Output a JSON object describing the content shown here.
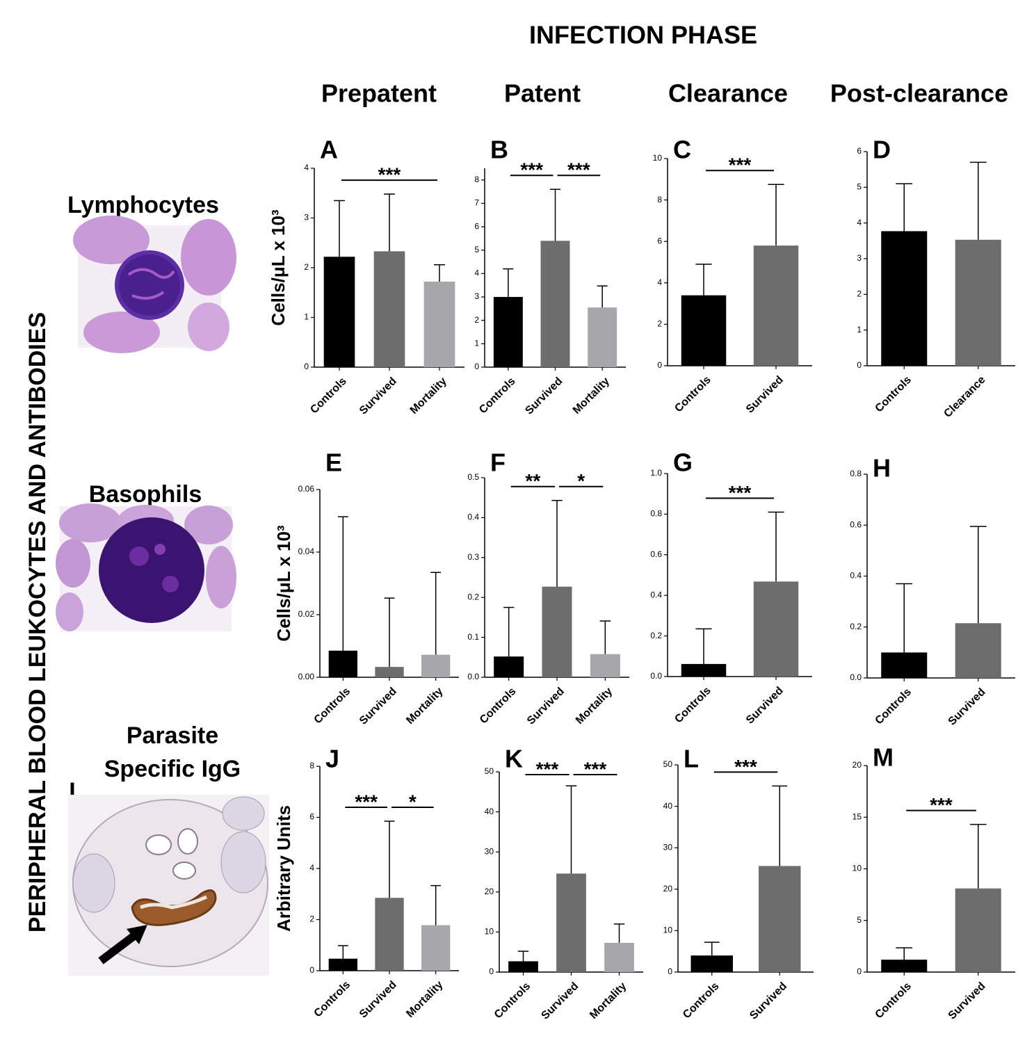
{
  "figure": {
    "title": "INFECTION PHASE",
    "phases": [
      "Prepatent",
      "Patent",
      "Clearance",
      "Post-clearance"
    ],
    "side_label": "PERIPHERAL BLOOD LEUKOCYTES AND ANTIBODIES",
    "row_labels": [
      "Lymphocytes",
      "Basophils"
    ],
    "igg_label": [
      "Parasite",
      "Specific IgG"
    ],
    "image_label": "I"
  },
  "chart_data": [
    {
      "type": "bar",
      "panel": "A",
      "ylabel": "Cells/μL x 10³",
      "categories": [
        "Controls",
        "Survived",
        "Mortality"
      ],
      "values": [
        2.22,
        2.33,
        1.72
      ],
      "errors": [
        1.13,
        1.15,
        0.34
      ],
      "colors": [
        "#000000",
        "#6d6d6d",
        "#a7a7ab"
      ],
      "ylim": [
        0,
        4
      ],
      "yticks": [
        0,
        1,
        2,
        3,
        4
      ],
      "annotations": [
        {
          "text": "***",
          "between": [
            "Controls",
            "Mortality"
          ]
        }
      ]
    },
    {
      "type": "bar",
      "panel": "B",
      "categories": [
        "Controls",
        "Survived",
        "Mortality"
      ],
      "values": [
        3.0,
        5.4,
        2.55
      ],
      "errors": [
        1.2,
        2.2,
        0.92
      ],
      "colors": [
        "#000000",
        "#6d6d6d",
        "#a7a7ab"
      ],
      "ylim": [
        0,
        8.5
      ],
      "yticks": [
        0,
        1,
        2,
        3,
        4,
        5,
        6,
        7,
        8
      ],
      "annotations": [
        {
          "text": "***",
          "between": [
            "Controls",
            "Survived"
          ]
        },
        {
          "text": "***",
          "between": [
            "Survived",
            "Mortality"
          ]
        }
      ]
    },
    {
      "type": "bar",
      "panel": "C",
      "categories": [
        "Controls",
        "Survived"
      ],
      "values": [
        3.4,
        5.8
      ],
      "errors": [
        1.5,
        2.95
      ],
      "colors": [
        "#000000",
        "#6d6d6d"
      ],
      "ylim": [
        0,
        10
      ],
      "yticks": [
        0,
        2,
        4,
        6,
        8,
        10
      ],
      "annotations": [
        {
          "text": "***",
          "between": [
            "Controls",
            "Survived"
          ]
        }
      ]
    },
    {
      "type": "bar",
      "panel": "D",
      "categories": [
        "Controls",
        "Clearance"
      ],
      "values": [
        3.77,
        3.53
      ],
      "errors": [
        1.33,
        2.17
      ],
      "colors": [
        "#000000",
        "#6d6d6d"
      ],
      "ylim": [
        0,
        6
      ],
      "yticks": [
        0,
        1,
        2,
        3,
        4,
        5,
        6
      ],
      "annotations": []
    },
    {
      "type": "bar",
      "panel": "E",
      "ylabel": "Cells/μL x 10³",
      "categories": [
        "Controls",
        "Survived",
        "Mortality"
      ],
      "values": [
        0.0085,
        0.0033,
        0.0072
      ],
      "errors": [
        0.0428,
        0.022,
        0.0263
      ],
      "colors": [
        "#000000",
        "#6d6d6d",
        "#a7a7ab"
      ],
      "ylim": [
        0,
        0.06
      ],
      "yticks": [
        {
          "value": 0,
          "label": "0.00"
        },
        {
          "value": 0.02,
          "label": "0.02"
        },
        {
          "value": 0.04,
          "label": "0.04"
        },
        {
          "value": 0.06,
          "label": "0.06"
        }
      ],
      "annotations": []
    },
    {
      "type": "bar",
      "panel": "F",
      "categories": [
        "Controls",
        "Survived",
        "Mortality"
      ],
      "values": [
        0.052,
        0.227,
        0.058
      ],
      "errors": [
        0.123,
        0.216,
        0.083
      ],
      "colors": [
        "#000000",
        "#6d6d6d",
        "#a7a7ab"
      ],
      "ylim": [
        0,
        0.5
      ],
      "yticks": [
        {
          "value": 0,
          "label": "0.0"
        },
        0.1,
        0.2,
        0.3,
        0.4,
        0.5
      ],
      "annotations": [
        {
          "text": "**",
          "between": [
            "Controls",
            "Survived"
          ]
        },
        {
          "text": "*",
          "between": [
            "Survived",
            "Mortality"
          ]
        }
      ]
    },
    {
      "type": "bar",
      "panel": "G",
      "categories": [
        "Controls",
        "Survived"
      ],
      "values": [
        0.062,
        0.468
      ],
      "errors": [
        0.173,
        0.342
      ],
      "colors": [
        "#000000",
        "#6d6d6d"
      ],
      "ylim": [
        0,
        1.0
      ],
      "yticks": [
        {
          "value": 0,
          "label": "0.0"
        },
        0.2,
        0.4,
        0.6,
        0.8,
        {
          "value": 1,
          "label": "1.0"
        }
      ],
      "annotations": [
        {
          "text": "***",
          "between": [
            "Controls",
            "Survived"
          ]
        }
      ]
    },
    {
      "type": "bar",
      "panel": "H",
      "categories": [
        "Controls",
        "Survived"
      ],
      "values": [
        0.1,
        0.215
      ],
      "errors": [
        0.27,
        0.38
      ],
      "colors": [
        "#000000",
        "#6d6d6d"
      ],
      "ylim": [
        0,
        0.8
      ],
      "yticks": [
        {
          "value": 0,
          "label": "0.0"
        },
        0.2,
        0.4,
        0.6,
        0.8
      ],
      "annotations": []
    },
    {
      "type": "bar",
      "panel": "J",
      "ylabel": "Arbitrary Units",
      "categories": [
        "Controls",
        "Survived",
        "Mortality"
      ],
      "values": [
        0.47,
        2.85,
        1.78
      ],
      "errors": [
        0.51,
        3.0,
        1.55
      ],
      "colors": [
        "#000000",
        "#6d6d6d",
        "#a7a7ab"
      ],
      "ylim": [
        0,
        8
      ],
      "yticks": [
        0,
        2,
        4,
        6,
        8
      ],
      "annotations": [
        {
          "text": "***",
          "between": [
            "Controls",
            "Survived"
          ]
        },
        {
          "text": "*",
          "between": [
            "Survived",
            "Mortality"
          ]
        }
      ]
    },
    {
      "type": "bar",
      "panel": "K",
      "categories": [
        "Controls",
        "Survived",
        "Mortality"
      ],
      "values": [
        2.7,
        24.6,
        7.3
      ],
      "errors": [
        2.5,
        21.9,
        4.7
      ],
      "colors": [
        "#000000",
        "#6d6d6d",
        "#a7a7ab"
      ],
      "ylim": [
        0,
        50
      ],
      "yticks": [
        0,
        10,
        20,
        30,
        40,
        50
      ],
      "annotations": [
        {
          "text": "***",
          "between": [
            "Controls",
            "Survived"
          ]
        },
        {
          "text": "***",
          "between": [
            "Survived",
            "Mortality"
          ]
        }
      ]
    },
    {
      "type": "bar",
      "panel": "L",
      "categories": [
        "Controls",
        "Survived"
      ],
      "values": [
        4.0,
        25.6
      ],
      "errors": [
        3.2,
        19.3
      ],
      "colors": [
        "#000000",
        "#6d6d6d"
      ],
      "ylim": [
        0,
        50
      ],
      "yticks": [
        0,
        10,
        20,
        30,
        40,
        50
      ],
      "annotations": [
        {
          "text": "***",
          "between": [
            "Controls",
            "Survived"
          ]
        }
      ]
    },
    {
      "type": "bar",
      "panel": "M",
      "categories": [
        "Controls",
        "Survived"
      ],
      "values": [
        1.2,
        8.1
      ],
      "errors": [
        1.15,
        6.2
      ],
      "colors": [
        "#000000",
        "#6d6d6d"
      ],
      "ylim": [
        0,
        20
      ],
      "yticks": [
        0,
        5,
        10,
        15,
        20
      ],
      "annotations": [
        {
          "text": "***",
          "between": [
            "Controls",
            "Survived"
          ]
        }
      ]
    }
  ]
}
